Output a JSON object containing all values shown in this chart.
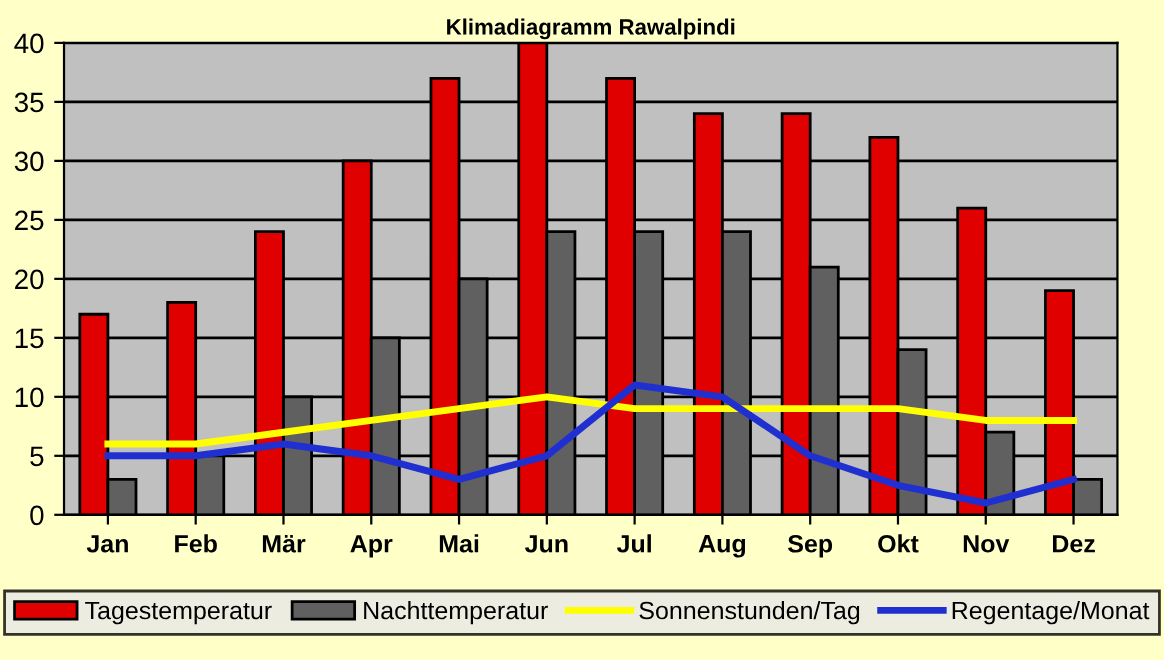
{
  "chart_data": {
    "type": "bar",
    "title": "Klimadiagramm Rawalpindi",
    "categories": [
      "Jan",
      "Feb",
      "Mär",
      "Apr",
      "Mai",
      "Jun",
      "Jul",
      "Aug",
      "Sep",
      "Okt",
      "Nov",
      "Dez"
    ],
    "series": [
      {
        "name": "Tagestemperatur",
        "color": "#e00000",
        "values": [
          17,
          18,
          24,
          30,
          37,
          40,
          37,
          34,
          34,
          32,
          26,
          19
        ]
      },
      {
        "name": "Nachttemperatur",
        "color": "#606060",
        "values": [
          3,
          5,
          10,
          15,
          20,
          24,
          24,
          24,
          21,
          14,
          7,
          3
        ]
      },
      {
        "name": "Sonnenstunden/Tag",
        "type": "line",
        "color": "#ffff00",
        "values": [
          6,
          6,
          7,
          8,
          9,
          10,
          9,
          9,
          9,
          9,
          8,
          8
        ]
      },
      {
        "name": "Regentage/Monat",
        "type": "line",
        "color": "#2030d0",
        "values": [
          5,
          5,
          6,
          5,
          3,
          5,
          11,
          10,
          5,
          2.5,
          1,
          3
        ]
      }
    ],
    "ylim": [
      0,
      40
    ],
    "yticks": [
      0,
      5,
      10,
      15,
      20,
      25,
      30,
      35,
      40
    ],
    "grid": "y",
    "legend": "bottom",
    "marker": "none",
    "line_style": "solid"
  }
}
